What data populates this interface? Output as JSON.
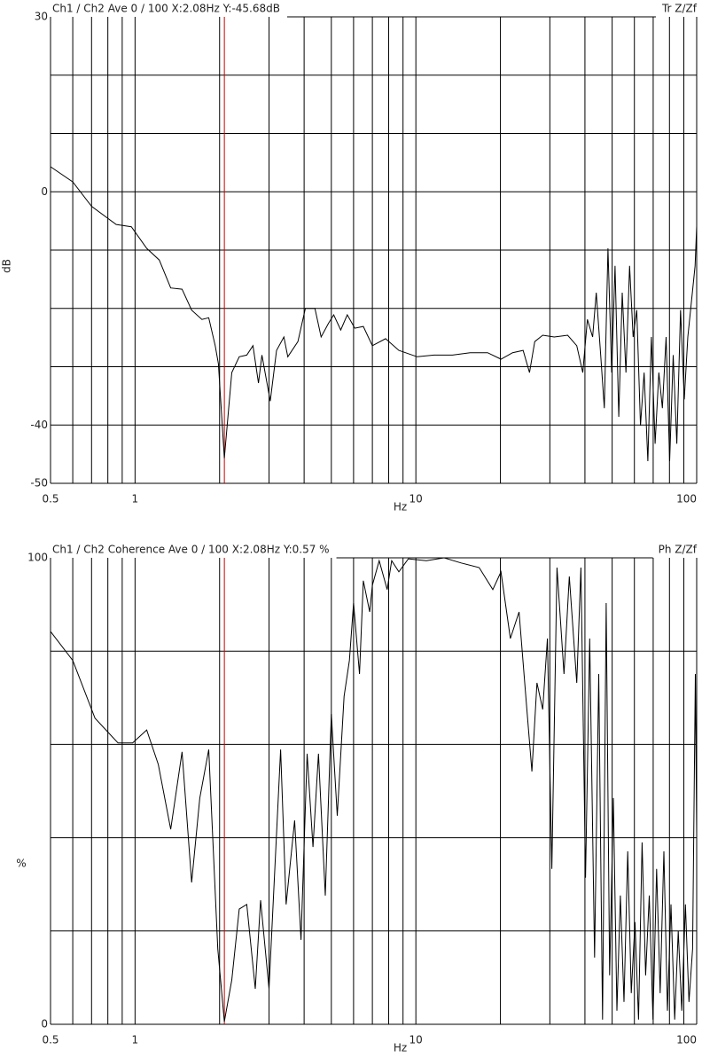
{
  "chart_data": [
    {
      "type": "line",
      "title": "Ch1 / Ch2  Ave 0 / 100  X:2.08Hz  Y:-45.68dB",
      "title_right": "Tr Z/Zf",
      "xlabel": "Hz",
      "ylabel": "dB",
      "xlog": true,
      "xlim": [
        0.5,
        100
      ],
      "xticks": [
        0.5,
        1,
        10,
        100
      ],
      "xgrid": [
        0.6,
        0.7,
        0.8,
        0.9,
        1,
        2,
        3,
        4,
        5,
        6,
        7,
        8,
        9,
        10,
        20,
        30,
        40,
        50,
        60,
        70,
        80,
        90
      ],
      "ylim": [
        -50,
        30
      ],
      "yticks": [
        -50,
        -40,
        0,
        30
      ],
      "ygrid": [
        -40,
        -30,
        -20,
        -10,
        0,
        10,
        20
      ],
      "cursor": {
        "x": 2.08,
        "color": "#cc0000"
      },
      "color": "#000000",
      "x": [
        0.5,
        0.6,
        0.7,
        0.857,
        0.97,
        1.1,
        1.22,
        1.34,
        1.47,
        1.59,
        1.73,
        1.83,
        1.93,
        1.98,
        2.08,
        2.21,
        2.35,
        2.5,
        2.63,
        2.75,
        2.83,
        3.03,
        3.19,
        3.39,
        3.5,
        3.8,
        4.04,
        4.37,
        4.6,
        4.88,
        5.1,
        5.4,
        5.7,
        6.06,
        6.5,
        7.0,
        7.8,
        8.7,
        10.1,
        11.6,
        13.5,
        15.6,
        18.0,
        20.1,
        22.1,
        24.1,
        25.4,
        26.5,
        28.3,
        31.1,
        34.7,
        37.4,
        39.3,
        40.8,
        42.6,
        43.9,
        45.5,
        46.9,
        48.3,
        49.8,
        51.2,
        52.8,
        54.3,
        56.0,
        57.7,
        59.4,
        61.2,
        63.1,
        65.0,
        67.0,
        69.0,
        71.1,
        73.3,
        75.5,
        77.8,
        80.1,
        82.5,
        85.0,
        87.6,
        90.3,
        93.0,
        95.8,
        98.7,
        100
      ],
      "values": [
        4.3,
        1.7,
        -2.5,
        -5.6,
        -6.0,
        -9.7,
        -11.7,
        -16.5,
        -16.7,
        -20.3,
        -21.9,
        -21.6,
        -26.4,
        -29.5,
        -45.68,
        -31.0,
        -28.3,
        -28.0,
        -26.4,
        -32.8,
        -28.0,
        -35.9,
        -27.2,
        -24.9,
        -28.3,
        -25.7,
        -20.0,
        -20.0,
        -24.9,
        -22.6,
        -21.1,
        -23.7,
        -21.1,
        -23.4,
        -23.1,
        -26.4,
        -25.2,
        -27.2,
        -28.3,
        -28.0,
        -28.0,
        -27.6,
        -27.6,
        -28.7,
        -27.6,
        -27.2,
        -31.0,
        -25.7,
        -24.6,
        -24.9,
        -24.6,
        -26.4,
        -31.0,
        -21.9,
        -24.9,
        -17.3,
        -28.0,
        -37.1,
        -9.7,
        -31.0,
        -12.7,
        -38.6,
        -17.3,
        -31.0,
        -12.7,
        -24.9,
        -20.3,
        -40.1,
        -31.0,
        -46.2,
        -24.9,
        -43.2,
        -31.0,
        -37.1,
        -24.9,
        -46.2,
        -28.0,
        -43.2,
        -20.3,
        -35.6,
        -24.9,
        -18.8,
        -12.7,
        -5.9
      ]
    },
    {
      "type": "line",
      "title": "Ch1 / Ch2  Coherence Ave 0 / 100  X:2.08Hz  Y:0.57 %",
      "title_right": "Ph Z/Zf",
      "xlabel": "Hz",
      "ylabel": "%",
      "xlog": true,
      "xlim": [
        0.5,
        100
      ],
      "xticks": [
        0.5,
        1,
        10,
        100
      ],
      "xgrid": [
        0.6,
        0.7,
        0.8,
        0.9,
        1,
        2,
        3,
        4,
        5,
        6,
        7,
        8,
        9,
        10,
        20,
        30,
        40,
        50,
        60,
        70,
        80,
        90
      ],
      "ylim": [
        0,
        100
      ],
      "yticks": [
        0,
        100
      ],
      "ygrid": [
        20,
        40,
        60,
        80
      ],
      "cursor": {
        "x": 2.08,
        "color": "#cc0000"
      },
      "color": "#000000",
      "x": [
        0.5,
        0.6,
        0.72,
        0.87,
        0.98,
        1.1,
        1.21,
        1.34,
        1.47,
        1.59,
        1.7,
        1.83,
        1.97,
        2.08,
        2.21,
        2.35,
        2.5,
        2.68,
        2.8,
        3.0,
        3.3,
        3.45,
        3.7,
        3.9,
        4.1,
        4.3,
        4.5,
        4.76,
        5.0,
        5.25,
        5.55,
        5.8,
        6.0,
        6.3,
        6.5,
        6.85,
        7.0,
        7.4,
        7.9,
        8.2,
        8.7,
        9.4,
        10.9,
        12.6,
        14.5,
        16.8,
        18.8,
        20.1,
        21.7,
        23.3,
        24.7,
        25.9,
        27.0,
        28.3,
        29.4,
        30.5,
        31.8,
        33.7,
        35.2,
        37.4,
        38.7,
        40.2,
        41.6,
        43.3,
        44.8,
        46.2,
        47.6,
        49.0,
        50.5,
        52.0,
        53.5,
        55.1,
        56.8,
        58.5,
        60.3,
        62.1,
        63.9,
        65.8,
        67.8,
        69.9,
        72.0,
        74.1,
        76.4,
        78.7,
        81.0,
        83.5,
        86.0,
        88.5,
        91.2,
        93.9,
        96.7,
        98.9,
        100
      ],
      "values": [
        84.2,
        78.0,
        65.6,
        60.3,
        60.3,
        63.1,
        55.7,
        41.8,
        58.4,
        30.4,
        48.5,
        58.9,
        16.2,
        0.57,
        9.5,
        24.7,
        25.7,
        7.6,
        26.6,
        7.6,
        58.9,
        25.7,
        43.7,
        18.1,
        58.0,
        38.0,
        58.0,
        27.6,
        66.5,
        44.7,
        70.3,
        78.0,
        90.3,
        75.1,
        95.1,
        88.4,
        94.1,
        99.4,
        93.2,
        99.4,
        97.0,
        99.8,
        99.4,
        100,
        98.9,
        97.9,
        93.2,
        97.0,
        82.7,
        88.4,
        69.4,
        54.2,
        73.2,
        67.5,
        82.7,
        33.3,
        97.9,
        75.1,
        96.0,
        73.2,
        97.9,
        31.4,
        82.7,
        14.3,
        75.1,
        1.0,
        90.3,
        10.5,
        48.5,
        2.9,
        27.6,
        4.8,
        37.1,
        6.7,
        21.9,
        1.0,
        39.0,
        10.5,
        27.6,
        1.0,
        33.3,
        6.7,
        37.1,
        2.9,
        25.7,
        1.0,
        20.0,
        2.9,
        25.7,
        4.8,
        16.2,
        75.1,
        40.9
      ]
    }
  ]
}
